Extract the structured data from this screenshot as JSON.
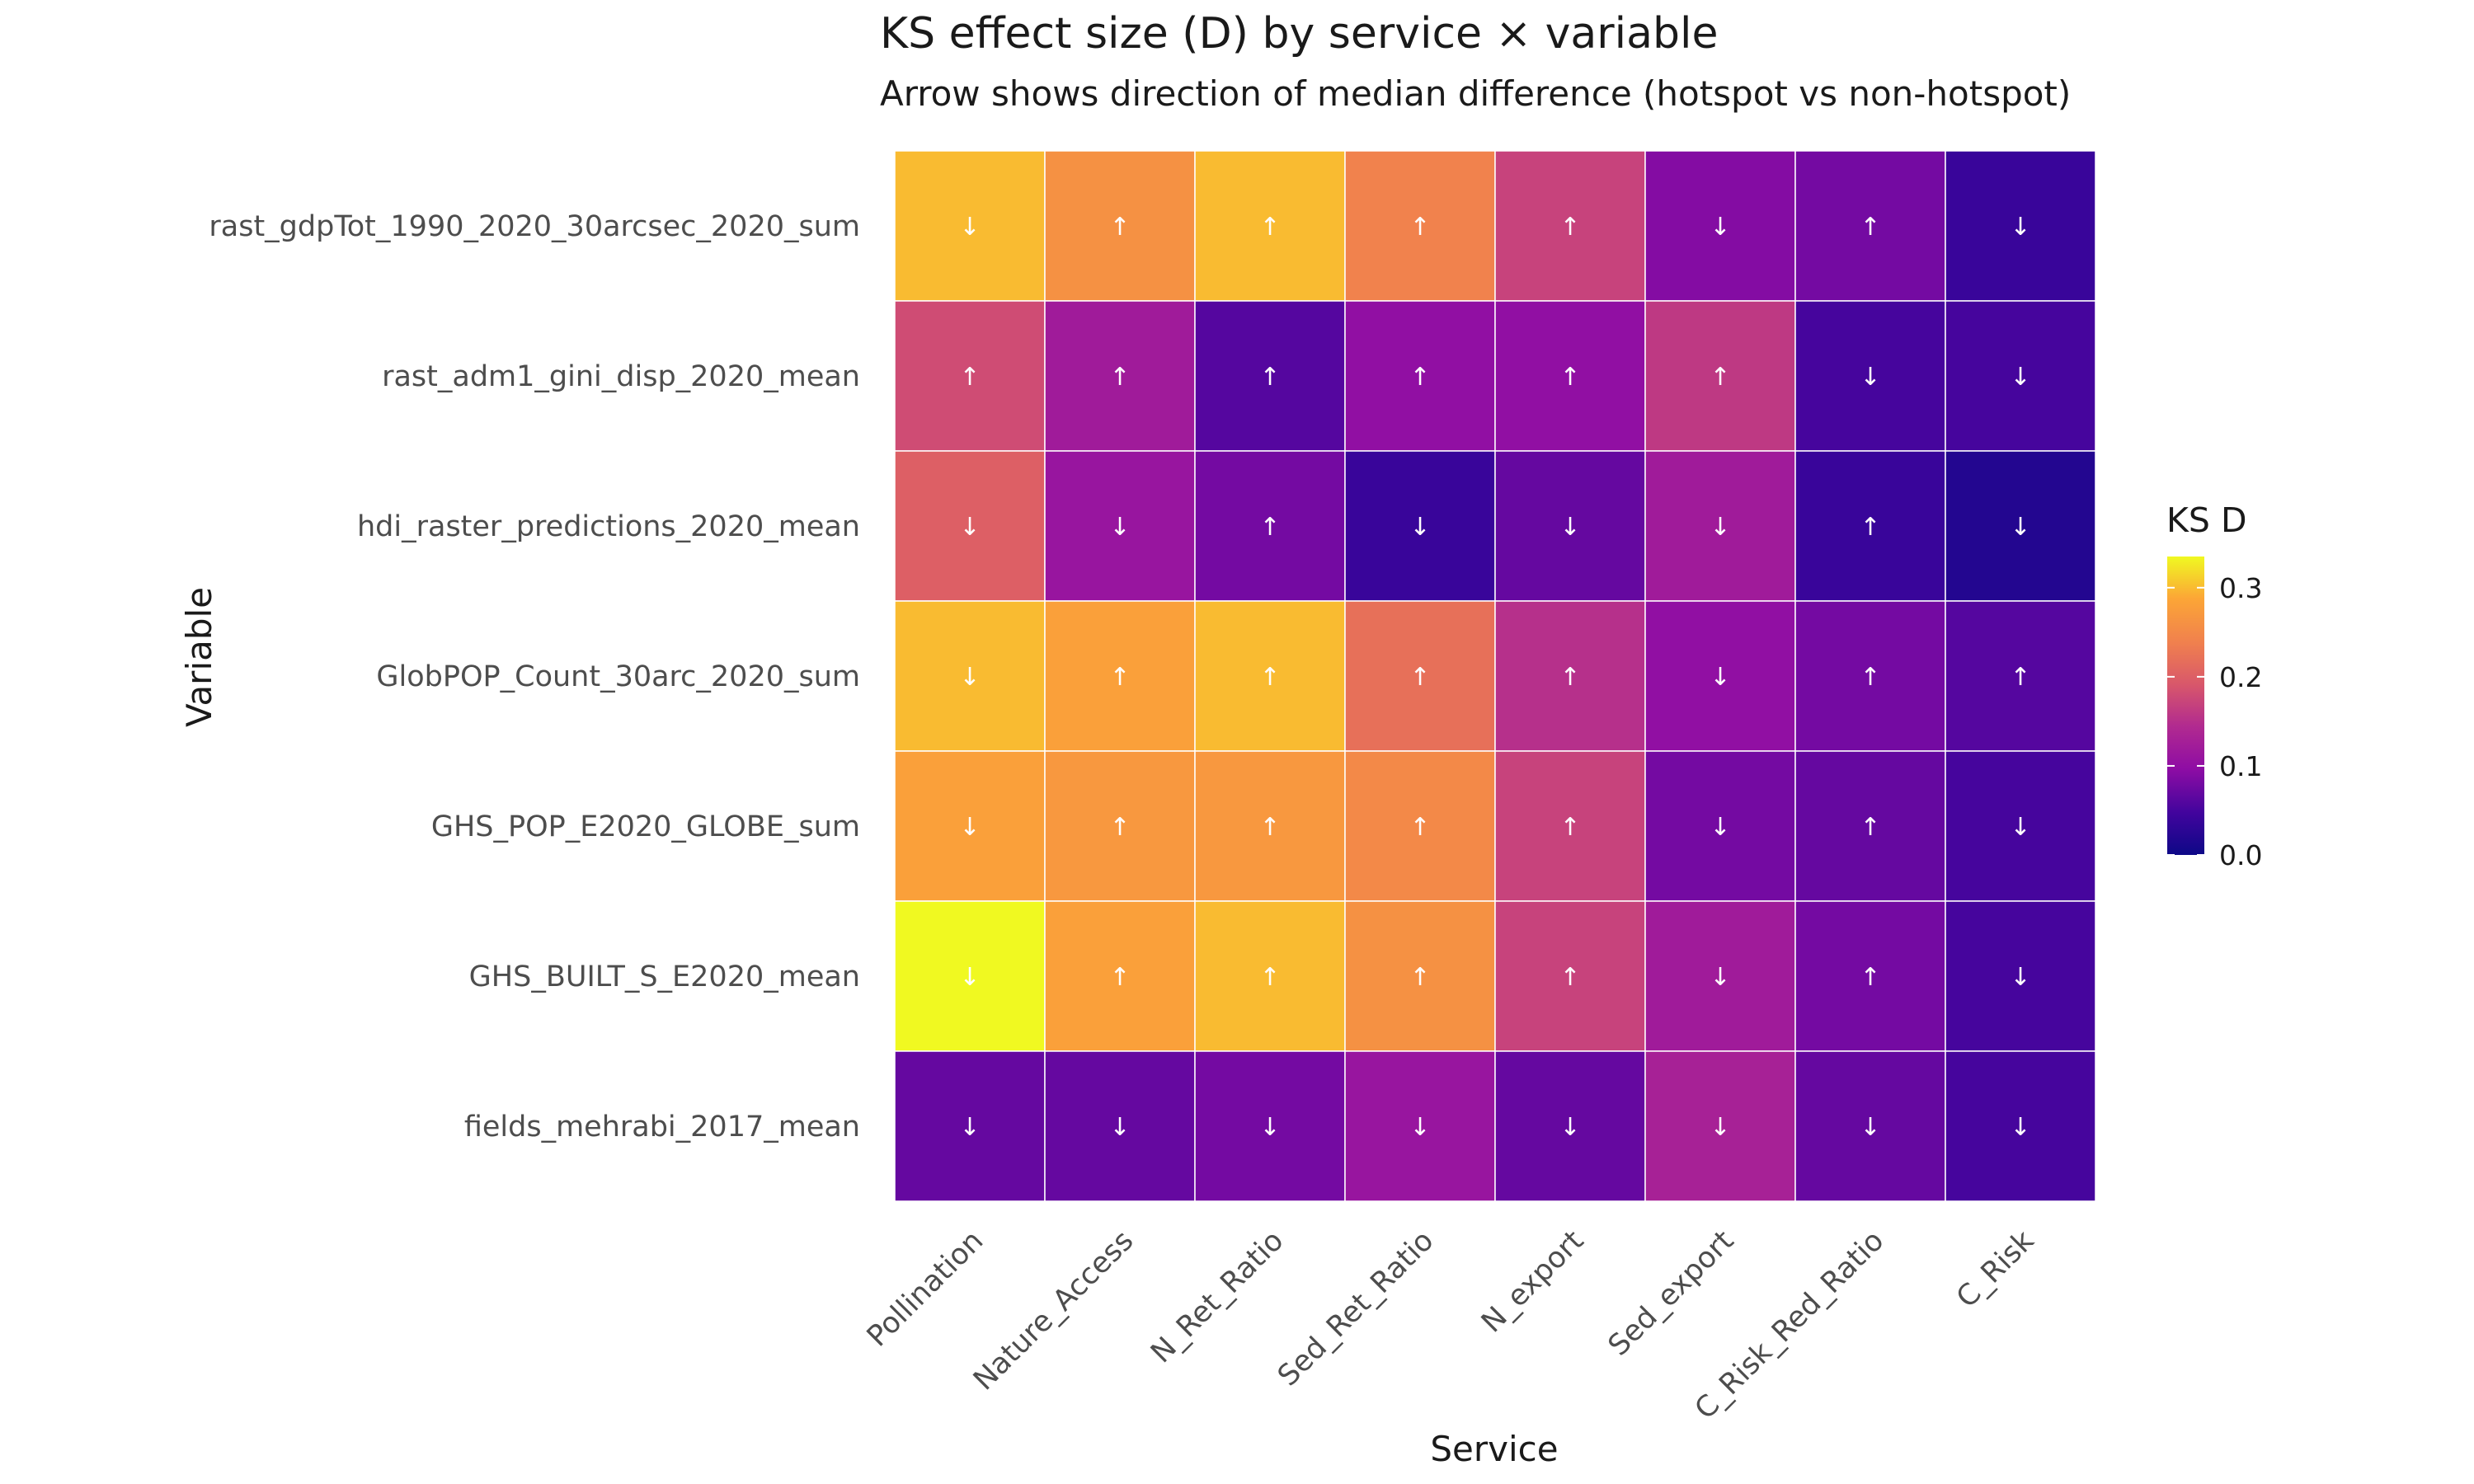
{
  "chart_data": {
    "type": "heatmap",
    "title": "KS effect size (D) by service × variable",
    "subtitle": "Arrow shows direction of median difference (hotspot vs non-hotspot)",
    "xlabel": "Service",
    "ylabel": "Variable",
    "x_categories": [
      "Pollination",
      "Nature_Access",
      "N_Ret_Ratio",
      "Sed_Ret_Ratio",
      "N_export",
      "Sed_export",
      "C_Risk_Red_Ratio",
      "C_Risk"
    ],
    "y_categories": [
      "rast_gdpTot_1990_2020_30arcsec_2020_sum",
      "rast_adm1_gini_disp_2020_mean",
      "hdi_raster_predictions_2020_mean",
      "GlobPOP_Count_30arc_2020_sum",
      "GHS_POP_E2020_GLOBE_sum",
      "GHS_BUILT_S_E2020_mean",
      "fields_mehrabi_2017_mean"
    ],
    "values": [
      [
        0.3,
        0.26,
        0.3,
        0.24,
        0.17,
        0.09,
        0.08,
        0.04
      ],
      [
        0.18,
        0.12,
        0.06,
        0.1,
        0.1,
        0.16,
        0.05,
        0.05
      ],
      [
        0.2,
        0.11,
        0.08,
        0.04,
        0.07,
        0.12,
        0.04,
        0.02
      ],
      [
        0.3,
        0.28,
        0.3,
        0.22,
        0.15,
        0.1,
        0.08,
        0.06
      ],
      [
        0.28,
        0.27,
        0.27,
        0.25,
        0.17,
        0.08,
        0.07,
        0.05
      ],
      [
        0.34,
        0.28,
        0.3,
        0.26,
        0.17,
        0.12,
        0.08,
        0.05
      ],
      [
        0.07,
        0.07,
        0.08,
        0.11,
        0.07,
        0.13,
        0.07,
        0.05
      ]
    ],
    "directions": [
      [
        "↓",
        "↑",
        "↑",
        "↑",
        "↑",
        "↓",
        "↑",
        "↓"
      ],
      [
        "↑",
        "↑",
        "↑",
        "↑",
        "↑",
        "↑",
        "↓",
        "↓"
      ],
      [
        "↓",
        "↓",
        "↑",
        "↓",
        "↓",
        "↓",
        "↑",
        "↓"
      ],
      [
        "↓",
        "↑",
        "↑",
        "↑",
        "↑",
        "↓",
        "↑",
        "↑"
      ],
      [
        "↓",
        "↑",
        "↑",
        "↑",
        "↑",
        "↓",
        "↑",
        "↓"
      ],
      [
        "↓",
        "↑",
        "↑",
        "↑",
        "↑",
        "↓",
        "↑",
        "↓"
      ],
      [
        "↓",
        "↓",
        "↓",
        "↓",
        "↓",
        "↓",
        "↓",
        "↓"
      ]
    ],
    "colorbar": {
      "title": "KS D",
      "range": [
        0,
        0.335
      ],
      "ticks": [
        0.0,
        0.1,
        0.2,
        0.3
      ],
      "tick_labels": [
        "0.0",
        "0.1",
        "0.2",
        "0.3"
      ],
      "palette": "plasma"
    },
    "grid": false,
    "legend_position": "right"
  }
}
